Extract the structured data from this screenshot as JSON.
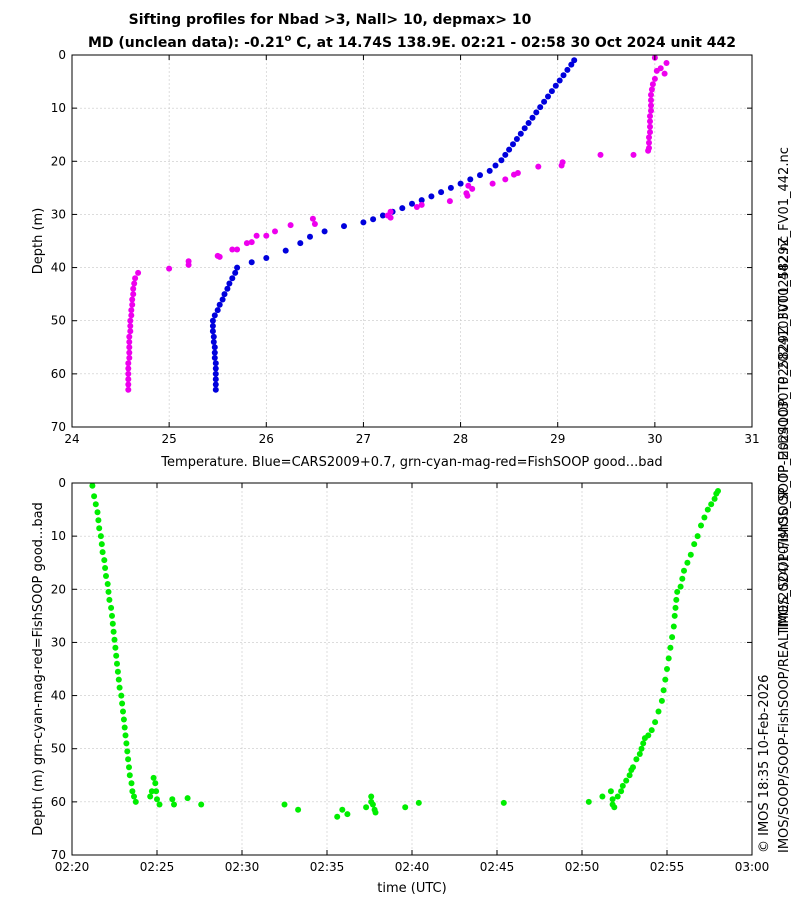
{
  "figure": {
    "title_line1": "Sifting profiles for Nbad >3, Nall> 10, depmax> 10",
    "title_line2_a": "MD (unclean data): -0.21",
    "title_line2_sup": "o",
    "title_line2_b": " C, at 14.74S 138.9E. 02:21 - 02:58 30 Oct 2024 unit 442",
    "side_text_1": "IMOS_SOOP-FishSOOP_TP_20241030T025829Z_FV01_442.nc",
    "side_text_2": "© IMOS 18:35 10-Feb-2026",
    "side_text_3": "IMOS/SOOP/SOOP-FishSOOP/REALTIME/2024/10/IMOS_SOOP-FishSOOP_TP_20241030T025829Z_FV01_442.nc"
  },
  "colors": {
    "cars": "#0000dd",
    "fishsoop_bad": "#ee00ee",
    "fishsoop_good": "#00ee00"
  },
  "chart_data": [
    {
      "type": "scatter",
      "name": "temperature-profile",
      "xlabel": "Temperature. Blue=CARS2009+0.7, grn-cyan-mag-red=FishSOOP good...bad",
      "ylabel": "Depth (m)",
      "xlim": [
        24,
        31
      ],
      "ylim": [
        70,
        0
      ],
      "xticks": [
        "24",
        "25",
        "26",
        "27",
        "28",
        "29",
        "30",
        "31"
      ],
      "yticks": [
        "0",
        "10",
        "20",
        "30",
        "40",
        "50",
        "60",
        "70"
      ],
      "grid": true,
      "series": [
        {
          "name": "CARS2009+0.7",
          "color": "#0000dd",
          "points": [
            [
              29.17,
              1
            ],
            [
              29.14,
              1.8
            ],
            [
              29.1,
              2.8
            ],
            [
              29.06,
              3.8
            ],
            [
              29.02,
              4.8
            ],
            [
              28.98,
              5.8
            ],
            [
              28.94,
              6.8
            ],
            [
              28.9,
              7.8
            ],
            [
              28.86,
              8.8
            ],
            [
              28.82,
              9.8
            ],
            [
              28.78,
              10.8
            ],
            [
              28.74,
              11.8
            ],
            [
              28.7,
              12.8
            ],
            [
              28.66,
              13.8
            ],
            [
              28.62,
              14.8
            ],
            [
              28.58,
              15.8
            ],
            [
              28.54,
              16.8
            ],
            [
              28.5,
              17.8
            ],
            [
              28.46,
              18.8
            ],
            [
              28.42,
              19.8
            ],
            [
              28.36,
              20.8
            ],
            [
              28.3,
              21.8
            ],
            [
              28.2,
              22.6
            ],
            [
              28.1,
              23.4
            ],
            [
              28.0,
              24.2
            ],
            [
              27.9,
              25.0
            ],
            [
              27.8,
              25.8
            ],
            [
              27.7,
              26.6
            ],
            [
              27.6,
              27.3
            ],
            [
              27.5,
              28.0
            ],
            [
              27.4,
              28.8
            ],
            [
              27.3,
              29.5
            ],
            [
              27.2,
              30.2
            ],
            [
              27.1,
              30.9
            ],
            [
              27.0,
              31.5
            ],
            [
              26.8,
              32.2
            ],
            [
              26.6,
              33.2
            ],
            [
              26.45,
              34.2
            ],
            [
              26.35,
              35.4
            ],
            [
              26.2,
              36.8
            ],
            [
              26.0,
              38.2
            ],
            [
              25.85,
              39.0
            ],
            [
              25.7,
              40.0
            ],
            [
              25.68,
              41.0
            ],
            [
              25.65,
              42.0
            ],
            [
              25.62,
              43.0
            ],
            [
              25.6,
              44.0
            ],
            [
              25.57,
              45.0
            ],
            [
              25.55,
              46.0
            ],
            [
              25.52,
              47.0
            ],
            [
              25.5,
              48.0
            ],
            [
              25.47,
              49.0
            ],
            [
              25.45,
              50.0
            ],
            [
              25.45,
              51.0
            ],
            [
              25.45,
              52.0
            ],
            [
              25.46,
              53.0
            ],
            [
              25.46,
              54.0
            ],
            [
              25.47,
              55.0
            ],
            [
              25.47,
              56.0
            ],
            [
              25.47,
              57.0
            ],
            [
              25.48,
              58.0
            ],
            [
              25.48,
              59.0
            ],
            [
              25.48,
              60.0
            ],
            [
              25.48,
              61.0
            ],
            [
              25.48,
              62.0
            ],
            [
              25.48,
              63.0
            ]
          ]
        },
        {
          "name": "FishSOOP bad",
          "color": "#ee00ee",
          "points": [
            [
              30.0,
              0.5
            ],
            [
              30.12,
              1.5
            ],
            [
              30.06,
              2.5
            ],
            [
              30.02,
              3
            ],
            [
              30.1,
              3.5
            ],
            [
              30.0,
              4.5
            ],
            [
              29.98,
              5.5
            ],
            [
              29.97,
              6.5
            ],
            [
              29.96,
              7.5
            ],
            [
              29.96,
              8.5
            ],
            [
              29.96,
              9.5
            ],
            [
              29.96,
              10.5
            ],
            [
              29.95,
              11.5
            ],
            [
              29.95,
              12.5
            ],
            [
              29.95,
              13.5
            ],
            [
              29.95,
              14.5
            ],
            [
              29.94,
              15.5
            ],
            [
              29.94,
              16.5
            ],
            [
              29.94,
              17.5
            ],
            [
              29.93,
              18.0
            ],
            [
              29.78,
              18.8
            ],
            [
              29.44,
              18.8
            ],
            [
              29.05,
              20.2
            ],
            [
              29.04,
              20.8
            ],
            [
              28.8,
              21.0
            ],
            [
              28.59,
              22.2
            ],
            [
              28.55,
              22.5
            ],
            [
              28.46,
              23.4
            ],
            [
              28.33,
              24.2
            ],
            [
              28.08,
              24.6
            ],
            [
              28.12,
              25.2
            ],
            [
              28.06,
              26.0
            ],
            [
              28.07,
              26.5
            ],
            [
              27.89,
              27.5
            ],
            [
              27.6,
              28.2
            ],
            [
              27.55,
              28.6
            ],
            [
              27.28,
              29.5
            ],
            [
              27.25,
              30.2
            ],
            [
              27.28,
              30.6
            ],
            [
              26.48,
              30.8
            ],
            [
              26.5,
              31.8
            ],
            [
              26.25,
              32.0
            ],
            [
              26.09,
              33.2
            ],
            [
              26.0,
              34.0
            ],
            [
              25.9,
              34.0
            ],
            [
              25.85,
              35.2
            ],
            [
              25.8,
              35.4
            ],
            [
              25.7,
              36.6
            ],
            [
              25.65,
              36.6
            ],
            [
              25.5,
              37.8
            ],
            [
              25.52,
              38.0
            ],
            [
              25.2,
              38.8
            ],
            [
              25.2,
              39.5
            ],
            [
              25.0,
              40.2
            ],
            [
              24.68,
              41.0
            ],
            [
              24.65,
              42.0
            ],
            [
              24.64,
              43.0
            ],
            [
              24.63,
              44.0
            ],
            [
              24.63,
              45.0
            ],
            [
              24.62,
              46.0
            ],
            [
              24.62,
              47.0
            ],
            [
              24.61,
              48.0
            ],
            [
              24.61,
              49.0
            ],
            [
              24.6,
              50.0
            ],
            [
              24.6,
              51.0
            ],
            [
              24.6,
              52.0
            ],
            [
              24.59,
              53.0
            ],
            [
              24.59,
              54.0
            ],
            [
              24.59,
              55.0
            ],
            [
              24.59,
              56.0
            ],
            [
              24.59,
              57.0
            ],
            [
              24.58,
              58.0
            ],
            [
              24.58,
              59.0
            ],
            [
              24.58,
              60.0
            ],
            [
              24.58,
              61.0
            ],
            [
              24.58,
              62.0
            ],
            [
              24.58,
              63.0
            ]
          ]
        }
      ]
    },
    {
      "type": "scatter",
      "name": "depth-vs-time",
      "xlabel": "time (UTC)",
      "ylabel": "Depth (m) grn-cyan-mag-red=FishSOOP good...bad",
      "xlim": [
        20,
        60
      ],
      "ylim": [
        70,
        0
      ],
      "xticks": [
        "02:20",
        "02:25",
        "02:30",
        "02:35",
        "02:40",
        "02:45",
        "02:50",
        "02:55",
        "03:00"
      ],
      "yticks": [
        "0",
        "10",
        "20",
        "30",
        "40",
        "50",
        "60",
        "70"
      ],
      "grid": true,
      "series": [
        {
          "name": "FishSOOP good",
          "color": "#00ee00",
          "points": [
            [
              21.2,
              0.5
            ],
            [
              21.3,
              2.5
            ],
            [
              21.4,
              4.0
            ],
            [
              21.5,
              5.5
            ],
            [
              21.55,
              7.0
            ],
            [
              21.6,
              8.5
            ],
            [
              21.7,
              10.0
            ],
            [
              21.75,
              11.5
            ],
            [
              21.8,
              13.0
            ],
            [
              21.9,
              14.5
            ],
            [
              21.95,
              16.0
            ],
            [
              22.0,
              17.5
            ],
            [
              22.1,
              19.0
            ],
            [
              22.15,
              20.5
            ],
            [
              22.2,
              22.0
            ],
            [
              22.3,
              23.5
            ],
            [
              22.35,
              25.0
            ],
            [
              22.4,
              26.5
            ],
            [
              22.45,
              28.0
            ],
            [
              22.5,
              29.5
            ],
            [
              22.55,
              31.0
            ],
            [
              22.6,
              32.5
            ],
            [
              22.65,
              34.0
            ],
            [
              22.7,
              35.5
            ],
            [
              22.75,
              37.0
            ],
            [
              22.8,
              38.5
            ],
            [
              22.9,
              40.0
            ],
            [
              22.95,
              41.5
            ],
            [
              23.0,
              43.0
            ],
            [
              23.05,
              44.5
            ],
            [
              23.1,
              46.0
            ],
            [
              23.15,
              47.5
            ],
            [
              23.2,
              49.0
            ],
            [
              23.25,
              50.5
            ],
            [
              23.3,
              52.0
            ],
            [
              23.35,
              53.5
            ],
            [
              23.4,
              55.0
            ],
            [
              23.5,
              56.5
            ],
            [
              23.55,
              58.0
            ],
            [
              23.65,
              59.0
            ],
            [
              23.75,
              60.0
            ],
            [
              24.8,
              55.5
            ],
            [
              24.9,
              56.5
            ],
            [
              24.7,
              58.0
            ],
            [
              24.95,
              58.0
            ],
            [
              24.6,
              59.0
            ],
            [
              25.0,
              59.5
            ],
            [
              25.15,
              60.5
            ],
            [
              25.9,
              59.5
            ],
            [
              26.0,
              60.5
            ],
            [
              26.8,
              59.3
            ],
            [
              27.6,
              60.5
            ],
            [
              32.5,
              60.5
            ],
            [
              33.3,
              61.5
            ],
            [
              35.6,
              62.8
            ],
            [
              35.9,
              61.5
            ],
            [
              36.2,
              62.3
            ],
            [
              37.3,
              61.0
            ],
            [
              37.6,
              59.0
            ],
            [
              37.6,
              60.0
            ],
            [
              37.7,
              60.5
            ],
            [
              37.8,
              61.5
            ],
            [
              37.85,
              62.0
            ],
            [
              39.6,
              61.0
            ],
            [
              40.4,
              60.2
            ],
            [
              45.4,
              60.2
            ],
            [
              50.4,
              60.0
            ],
            [
              51.2,
              59.0
            ],
            [
              51.7,
              58.0
            ],
            [
              51.8,
              59.5
            ],
            [
              51.8,
              60.5
            ],
            [
              51.9,
              61.0
            ],
            [
              52.1,
              59.0
            ],
            [
              52.3,
              58.0
            ],
            [
              52.4,
              57.0
            ],
            [
              52.6,
              56.0
            ],
            [
              52.8,
              55.0
            ],
            [
              52.9,
              54.0
            ],
            [
              53.0,
              53.5
            ],
            [
              53.2,
              52.0
            ],
            [
              53.4,
              51.0
            ],
            [
              53.5,
              50.0
            ],
            [
              53.6,
              49.0
            ],
            [
              53.7,
              48.0
            ],
            [
              53.9,
              47.5
            ],
            [
              54.1,
              46.5
            ],
            [
              54.3,
              45.0
            ],
            [
              54.5,
              43.0
            ],
            [
              54.7,
              41.0
            ],
            [
              54.8,
              39.0
            ],
            [
              54.9,
              37.0
            ],
            [
              55.0,
              35.0
            ],
            [
              55.1,
              33.0
            ],
            [
              55.2,
              31.0
            ],
            [
              55.3,
              29.0
            ],
            [
              55.4,
              27.0
            ],
            [
              55.45,
              25.0
            ],
            [
              55.5,
              23.5
            ],
            [
              55.55,
              22.0
            ],
            [
              55.6,
              20.5
            ],
            [
              55.8,
              19.5
            ],
            [
              55.9,
              18.0
            ],
            [
              56.0,
              16.5
            ],
            [
              56.2,
              15.0
            ],
            [
              56.4,
              13.5
            ],
            [
              56.6,
              11.5
            ],
            [
              56.8,
              10.0
            ],
            [
              57.0,
              8.0
            ],
            [
              57.2,
              6.5
            ],
            [
              57.4,
              5.0
            ],
            [
              57.6,
              4.0
            ],
            [
              57.8,
              3.0
            ],
            [
              57.9,
              2.0
            ],
            [
              58.0,
              1.5
            ]
          ]
        }
      ]
    }
  ]
}
